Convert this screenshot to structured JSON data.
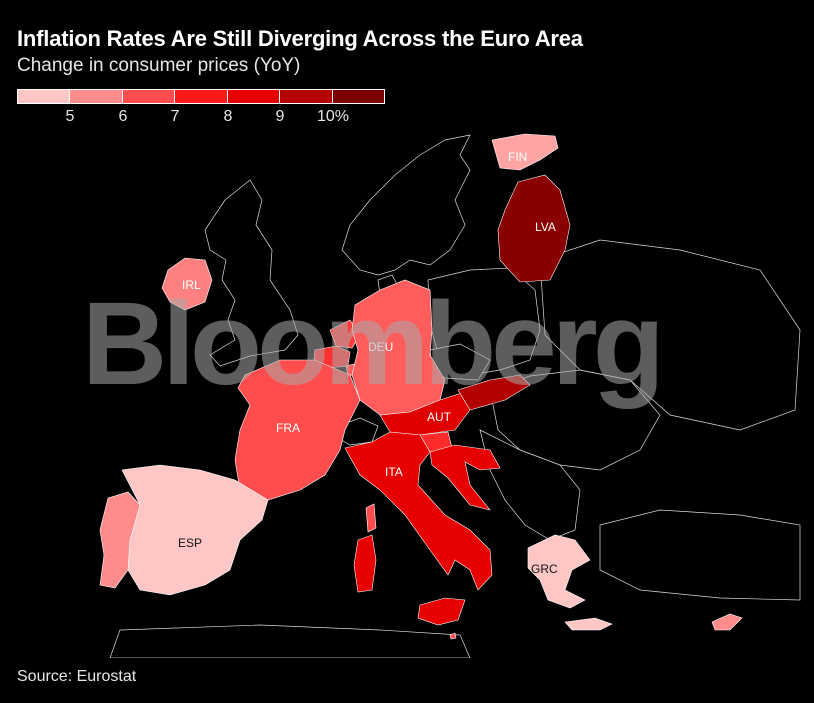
{
  "header": {
    "title": "Inflation Rates Are Still Diverging Across the Euro Area",
    "subtitle": "Change in consumer prices (YoY)"
  },
  "legend": {
    "swatches": [
      "#ffc6c6",
      "#ff8c8c",
      "#ff4d4d",
      "#ff1a1a",
      "#e60000",
      "#b30000",
      "#7a0000"
    ],
    "labels": [
      "5",
      "6",
      "7",
      "8",
      "9",
      "10%"
    ]
  },
  "map": {
    "labels": {
      "fin": "FIN",
      "lva": "LVA",
      "irl": "IRL",
      "deu": "DEU",
      "fra": "FRA",
      "aut": "AUT",
      "ita": "ITA",
      "esp": "ESP",
      "grc": "GRC"
    },
    "colors": {
      "fin": "#ffa3a3",
      "lva": "#8a0000",
      "irl": "#ff8080",
      "deu": "#ff5c5c",
      "fra": "#ff4d4d",
      "aut": "#e00000",
      "ita": "#e60000",
      "esp": "#ffc6c6",
      "grc": "#ffc6c6",
      "prt": "#ff8c8c",
      "bel": "#ff3030",
      "nld": "#ff3a3a",
      "lux": "#ff5c5c",
      "svk": "#b30000",
      "svn": "#ff2a2a",
      "hrv": "#e60000",
      "cyp": "#ff8c8c",
      "mlt": "#ff4d4d"
    }
  },
  "watermark": "Bloomberg",
  "footer": {
    "source": "Source: Eurostat"
  }
}
